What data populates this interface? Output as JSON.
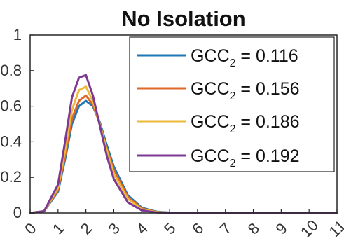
{
  "chart_data": {
    "type": "line",
    "title": "No Isolation",
    "xlabel": "",
    "ylabel": "",
    "xlim": [
      0,
      11
    ],
    "ylim": [
      0,
      1
    ],
    "x_ticks": [
      "0",
      "1",
      "2",
      "3",
      "4",
      "5",
      "6",
      "7",
      "8",
      "9",
      "10",
      "11"
    ],
    "y_ticks": [
      "0",
      "0.2",
      "0.4",
      "0.6",
      "0.8",
      "1"
    ],
    "grid": false,
    "legend_position": "top-right",
    "series": [
      {
        "name": "GCC2 = 0.116",
        "legend_base": "GCC",
        "legend_sub": "2",
        "legend_value": " = 0.116",
        "color": "#1f77b4",
        "x": [
          0,
          0.5,
          1,
          1.25,
          1.5,
          1.75,
          2,
          2.25,
          2.5,
          2.75,
          3,
          3.5,
          4,
          4.5,
          5,
          6,
          11
        ],
        "y": [
          0,
          0.01,
          0.12,
          0.3,
          0.5,
          0.6,
          0.63,
          0.6,
          0.51,
          0.38,
          0.26,
          0.1,
          0.03,
          0.008,
          0.002,
          0,
          0
        ]
      },
      {
        "name": "GCC2 = 0.156",
        "legend_base": "GCC",
        "legend_sub": "2",
        "legend_value": " = 0.156",
        "color": "#e0672a",
        "x": [
          0,
          0.5,
          1,
          1.25,
          1.5,
          1.75,
          2,
          2.25,
          2.5,
          2.75,
          3,
          3.5,
          4,
          4.5,
          5,
          6,
          11
        ],
        "y": [
          0,
          0.01,
          0.13,
          0.32,
          0.53,
          0.63,
          0.66,
          0.61,
          0.5,
          0.36,
          0.24,
          0.09,
          0.025,
          0.006,
          0.001,
          0,
          0
        ]
      },
      {
        "name": "GCC2 = 0.186",
        "legend_base": "GCC",
        "legend_sub": "2",
        "legend_value": " = 0.186",
        "color": "#eeb839",
        "x": [
          0,
          0.5,
          1,
          1.25,
          1.5,
          1.75,
          2,
          2.25,
          2.5,
          2.75,
          3,
          3.5,
          4,
          4.5,
          5,
          6,
          11
        ],
        "y": [
          0,
          0.01,
          0.14,
          0.35,
          0.58,
          0.69,
          0.71,
          0.63,
          0.5,
          0.35,
          0.22,
          0.08,
          0.02,
          0.005,
          0.001,
          0,
          0
        ]
      },
      {
        "name": "GCC2 = 0.192",
        "legend_base": "GCC",
        "legend_sub": "2",
        "legend_value": " = 0.192",
        "color": "#7e3a93",
        "x": [
          0,
          0.5,
          1,
          1.25,
          1.5,
          1.75,
          2,
          2.25,
          2.5,
          2.75,
          3,
          3.5,
          4,
          4.5,
          5,
          6,
          11
        ],
        "y": [
          0,
          0.01,
          0.16,
          0.4,
          0.65,
          0.76,
          0.775,
          0.66,
          0.49,
          0.32,
          0.19,
          0.06,
          0.015,
          0.003,
          0.001,
          0,
          0
        ]
      }
    ]
  }
}
